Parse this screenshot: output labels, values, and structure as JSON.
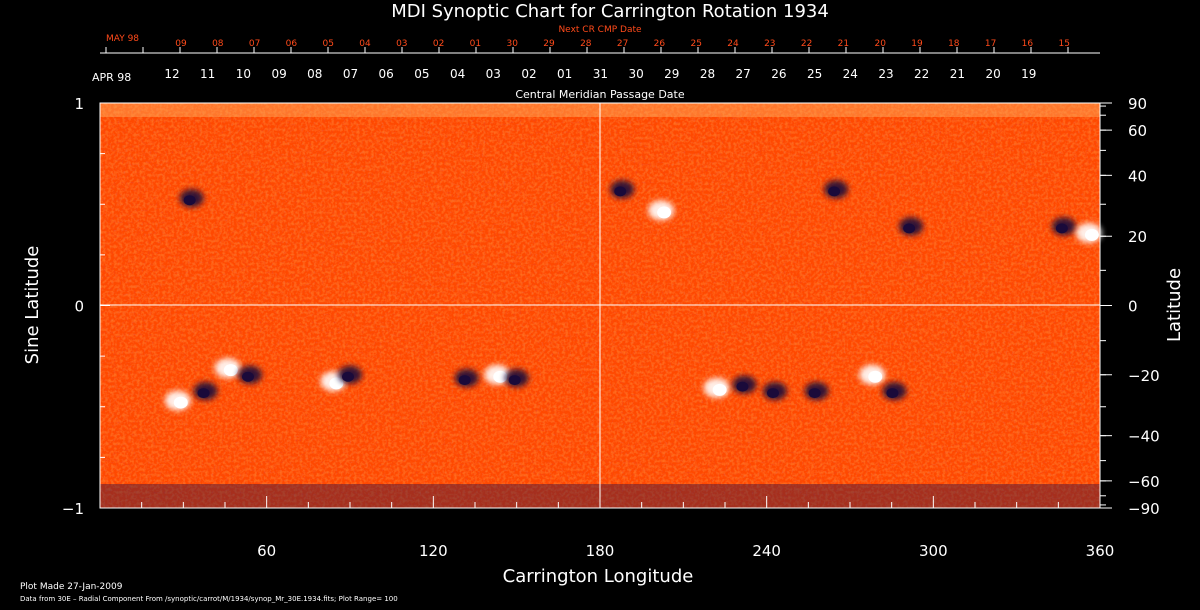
{
  "chart_data": {
    "type": "heatmap",
    "title": "MDI Synoptic Chart for Carrington Rotation 1934",
    "xlabel": "Carrington Longitude",
    "ylabel_left": "Sine Latitude",
    "ylabel_right": "Latitude",
    "xlim": [
      0,
      360
    ],
    "ylim_sine": [
      -1,
      1
    ],
    "x_ticks": [
      "60",
      "120",
      "180",
      "240",
      "300",
      "360"
    ],
    "y_ticks_left": [
      "1",
      "0",
      "−1"
    ],
    "y_ticks_right": [
      "90",
      "60",
      "40",
      "20",
      "0",
      "−20",
      "−40",
      "−60",
      "−90"
    ],
    "y_ticks_right_values": [
      90,
      60,
      40,
      20,
      0,
      -20,
      -40,
      -60,
      -90
    ],
    "top_axis_label": "Next CR CMP Date",
    "top_axis_month": "MAY 98",
    "top_axis_dates": [
      "09",
      "08",
      "07",
      "06",
      "05",
      "04",
      "03",
      "02",
      "01",
      "30",
      "29",
      "28",
      "27",
      "26",
      "25",
      "24",
      "23",
      "22",
      "21",
      "20",
      "19",
      "18",
      "17",
      "16",
      "15"
    ],
    "top_axis_color": "#ff4a1a",
    "mid_axis_label": "Central Meridian Passage Date",
    "mid_axis_month": "APR 98",
    "mid_axis_dates": [
      "12",
      "11",
      "10",
      "09",
      "08",
      "07",
      "06",
      "05",
      "04",
      "03",
      "02",
      "01",
      "31",
      "30",
      "29",
      "28",
      "27",
      "26",
      "25",
      "24",
      "23",
      "22",
      "21",
      "20",
      "19"
    ],
    "gridlines": {
      "x": [
        180
      ],
      "y_sine": [
        0
      ]
    },
    "colors": {
      "background": "#ff4a00",
      "positive": "#ffffff",
      "negative": "#1a0a3a",
      "text": "#ffffff"
    },
    "active_regions": [
      {
        "lon": 28,
        "lat": -28,
        "polarity": "positive"
      },
      {
        "lon": 38,
        "lat": -25,
        "polarity": "negative"
      },
      {
        "lon": 46,
        "lat": -18,
        "polarity": "positive"
      },
      {
        "lon": 54,
        "lat": -20,
        "polarity": "negative"
      },
      {
        "lon": 84,
        "lat": -22,
        "polarity": "positive"
      },
      {
        "lon": 90,
        "lat": -20,
        "polarity": "negative"
      },
      {
        "lon": 132,
        "lat": -21,
        "polarity": "negative"
      },
      {
        "lon": 143,
        "lat": -20,
        "polarity": "positive"
      },
      {
        "lon": 150,
        "lat": -21,
        "polarity": "negative"
      },
      {
        "lon": 222,
        "lat": -24,
        "polarity": "positive"
      },
      {
        "lon": 232,
        "lat": -23,
        "polarity": "negative"
      },
      {
        "lon": 243,
        "lat": -25,
        "polarity": "negative"
      },
      {
        "lon": 258,
        "lat": -25,
        "polarity": "negative"
      },
      {
        "lon": 278,
        "lat": -20,
        "polarity": "positive"
      },
      {
        "lon": 286,
        "lat": -25,
        "polarity": "negative"
      },
      {
        "lon": 33,
        "lat": 32,
        "polarity": "negative"
      },
      {
        "lon": 188,
        "lat": 35,
        "polarity": "negative"
      },
      {
        "lon": 202,
        "lat": 28,
        "polarity": "positive"
      },
      {
        "lon": 265,
        "lat": 35,
        "polarity": "negative"
      },
      {
        "lon": 292,
        "lat": 23,
        "polarity": "negative"
      },
      {
        "lon": 347,
        "lat": 23,
        "polarity": "negative"
      },
      {
        "lon": 356,
        "lat": 21,
        "polarity": "positive"
      }
    ]
  },
  "footer": {
    "line1": "Plot Made 27-Jan-2009",
    "line2": "Data from 30E – Radial Component From /synoptic/carrot/M/1934/synop_Mr_30E.1934.fits; Plot Range=  100"
  }
}
